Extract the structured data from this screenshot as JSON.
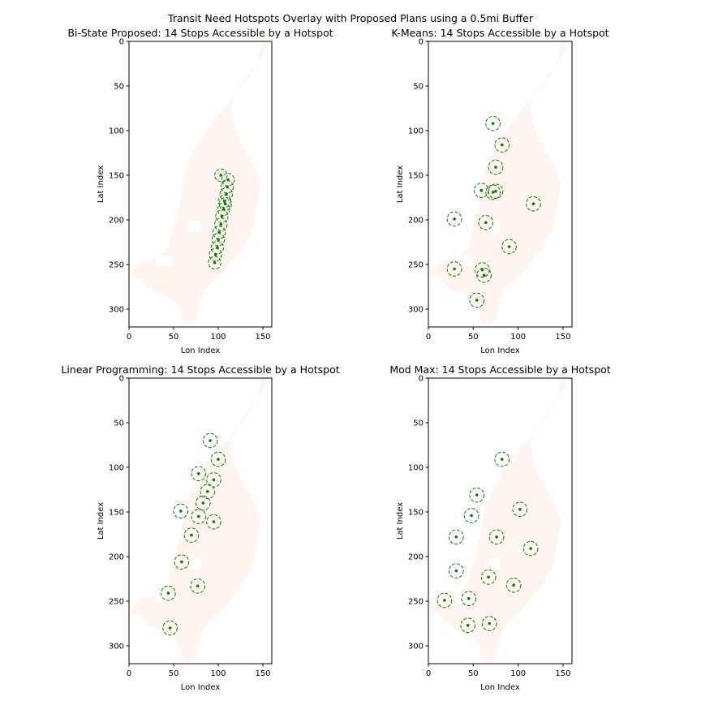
{
  "figure": {
    "title": "Transit Need Hotspots Overlay with Proposed Plans using a 0.5mi Buffer",
    "colors": {
      "region": "#fff4ef",
      "marker": "#007f00",
      "axes": "#000000"
    }
  },
  "chart_data": [
    {
      "type": "scatter",
      "title": "Bi-State Proposed: 14 Stops Accessible by a Hotspot",
      "xlabel": "Lon Index",
      "ylabel": "Lat Index",
      "xlim": [
        0,
        160
      ],
      "ylim": [
        320,
        0
      ],
      "xticks": [
        0,
        50,
        100,
        150
      ],
      "yticks": [
        0,
        50,
        100,
        150,
        200,
        250,
        300
      ],
      "buffer_radius": 7,
      "points": [
        {
          "x": 103,
          "y": 150
        },
        {
          "x": 111,
          "y": 155
        },
        {
          "x": 110,
          "y": 163
        },
        {
          "x": 109,
          "y": 171
        },
        {
          "x": 107,
          "y": 179
        },
        {
          "x": 106,
          "y": 188
        },
        {
          "x": 104,
          "y": 196
        },
        {
          "x": 103,
          "y": 205
        },
        {
          "x": 101,
          "y": 214
        },
        {
          "x": 100,
          "y": 222
        },
        {
          "x": 99,
          "y": 231
        },
        {
          "x": 97,
          "y": 239
        },
        {
          "x": 96,
          "y": 248
        },
        {
          "x": 108,
          "y": 182
        }
      ]
    },
    {
      "type": "scatter",
      "title": "K-Means: 14 Stops Accessible by a Hotspot",
      "xlabel": "Lon Index",
      "ylabel": "Lat Index",
      "xlim": [
        0,
        160
      ],
      "ylim": [
        320,
        0
      ],
      "xticks": [
        0,
        50,
        100,
        150
      ],
      "yticks": [
        0,
        50,
        100,
        150,
        200,
        250,
        300
      ],
      "buffer_radius": 8,
      "points": [
        {
          "x": 72,
          "y": 92
        },
        {
          "x": 82,
          "y": 116
        },
        {
          "x": 75,
          "y": 141
        },
        {
          "x": 59,
          "y": 167
        },
        {
          "x": 72,
          "y": 169
        },
        {
          "x": 75,
          "y": 168
        },
        {
          "x": 117,
          "y": 182
        },
        {
          "x": 29,
          "y": 199
        },
        {
          "x": 64,
          "y": 203
        },
        {
          "x": 90,
          "y": 230
        },
        {
          "x": 29,
          "y": 255
        },
        {
          "x": 60,
          "y": 256
        },
        {
          "x": 62,
          "y": 262
        },
        {
          "x": 54,
          "y": 290
        }
      ]
    },
    {
      "type": "scatter",
      "title": "Linear Programming: 14 Stops Accessible by a Hotspot",
      "xlabel": "Lon Index",
      "ylabel": "Lat Index",
      "xlim": [
        0,
        160
      ],
      "ylim": [
        320,
        0
      ],
      "xticks": [
        0,
        50,
        100,
        150
      ],
      "yticks": [
        0,
        50,
        100,
        150,
        200,
        250,
        300
      ],
      "buffer_radius": 8,
      "points": [
        {
          "x": 91,
          "y": 70
        },
        {
          "x": 100,
          "y": 91
        },
        {
          "x": 78,
          "y": 107
        },
        {
          "x": 95,
          "y": 114
        },
        {
          "x": 88,
          "y": 127
        },
        {
          "x": 83,
          "y": 140
        },
        {
          "x": 58,
          "y": 149
        },
        {
          "x": 78,
          "y": 155
        },
        {
          "x": 95,
          "y": 161
        },
        {
          "x": 70,
          "y": 176
        },
        {
          "x": 59,
          "y": 206
        },
        {
          "x": 77,
          "y": 233
        },
        {
          "x": 44,
          "y": 241
        },
        {
          "x": 46,
          "y": 280
        }
      ]
    },
    {
      "type": "scatter",
      "title": "Mod Max: 14 Stops Accessible by a Hotspot",
      "xlabel": "Lon Index",
      "ylabel": "Lat Index",
      "xlim": [
        0,
        160
      ],
      "ylim": [
        320,
        0
      ],
      "xticks": [
        0,
        50,
        100,
        150
      ],
      "yticks": [
        0,
        50,
        100,
        150,
        200,
        250,
        300
      ],
      "buffer_radius": 8,
      "points": [
        {
          "x": 82,
          "y": 91
        },
        {
          "x": 54,
          "y": 131
        },
        {
          "x": 102,
          "y": 147
        },
        {
          "x": 48,
          "y": 154
        },
        {
          "x": 31,
          "y": 178
        },
        {
          "x": 76,
          "y": 178
        },
        {
          "x": 114,
          "y": 191
        },
        {
          "x": 31,
          "y": 216
        },
        {
          "x": 67,
          "y": 223
        },
        {
          "x": 95,
          "y": 232
        },
        {
          "x": 18,
          "y": 249
        },
        {
          "x": 45,
          "y": 247
        },
        {
          "x": 44,
          "y": 277
        },
        {
          "x": 68,
          "y": 275
        }
      ]
    }
  ]
}
